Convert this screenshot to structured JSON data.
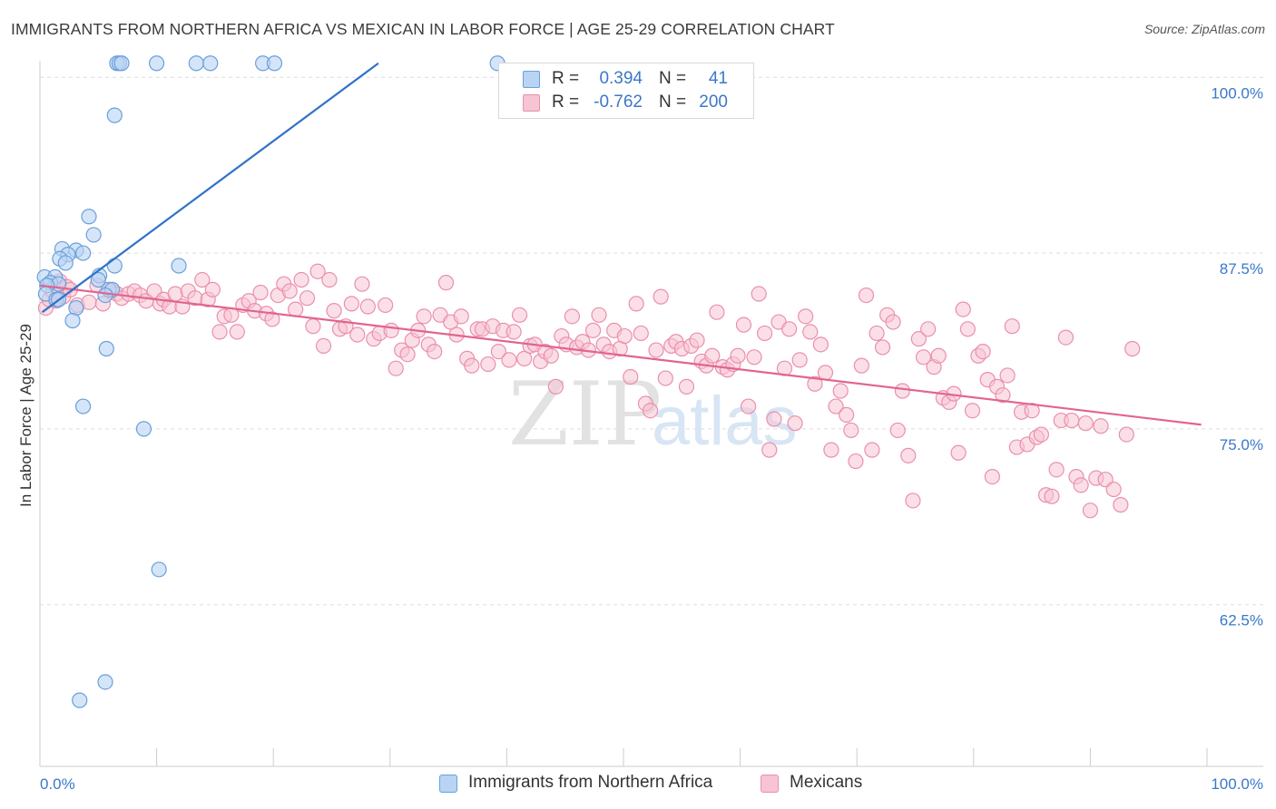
{
  "header": {
    "title": "IMMIGRANTS FROM NORTHERN AFRICA VS MEXICAN IN LABOR FORCE | AGE 25-29 CORRELATION CHART",
    "source": "Source: ZipAtlas.com"
  },
  "watermark": {
    "zip": "ZIP",
    "atlas": "atlas"
  },
  "colors": {
    "blue_fill": "#b9d4f3",
    "blue_stroke": "#6a9fdc",
    "blue_line": "#2f72c9",
    "pink_fill": "#f7c4d3",
    "pink_stroke": "#ea8fae",
    "pink_line": "#e2648f",
    "tick_label": "#3a78c9",
    "grid": "#dddddd"
  },
  "stats_legend": [
    {
      "r_label": "R =",
      "r_value": "0.394",
      "n_label": "N =",
      "n_value": "41"
    },
    {
      "r_label": "R =",
      "r_value": "-0.762",
      "n_label": "N =",
      "n_value": "200"
    }
  ],
  "bottom_legend": [
    {
      "label": "Immigrants from Northern Africa"
    },
    {
      "label": "Mexicans"
    }
  ],
  "chart_data": {
    "type": "scatter",
    "title": "IMMIGRANTS FROM NORTHERN AFRICA VS MEXICAN IN LABOR FORCE | AGE 25-29 CORRELATION CHART",
    "xlabel": "",
    "ylabel": "In Labor Force | Age 25-29",
    "xlim": [
      0,
      100
    ],
    "ylim": [
      51,
      101.5
    ],
    "x_tick_labels": [
      "0.0%",
      "100.0%"
    ],
    "y_ticks": [
      100,
      87.5,
      75,
      62.5
    ],
    "y_tick_labels": [
      "100.0%",
      "87.5%",
      "75.0%",
      "62.5%"
    ],
    "grid": true,
    "series": [
      {
        "name": "Immigrants from Northern Africa",
        "color": "#b9d4f3",
        "r": 0.394,
        "n": 41,
        "trend": {
          "x": [
            0.2,
            29.0
          ],
          "y": [
            83.3,
            101.0
          ]
        },
        "points": [
          [
            6.6,
            101
          ],
          [
            6.8,
            101
          ],
          [
            7.0,
            101
          ],
          [
            10.0,
            101
          ],
          [
            13.4,
            101
          ],
          [
            14.6,
            101
          ],
          [
            19.1,
            101
          ],
          [
            20.1,
            101
          ],
          [
            39.2,
            101
          ],
          [
            6.4,
            97.3
          ],
          [
            4.2,
            90.1
          ],
          [
            4.6,
            88.8
          ],
          [
            1.9,
            87.8
          ],
          [
            3.1,
            87.7
          ],
          [
            3.7,
            87.5
          ],
          [
            2.4,
            87.4
          ],
          [
            1.7,
            87.1
          ],
          [
            2.2,
            86.8
          ],
          [
            6.4,
            86.6
          ],
          [
            11.9,
            86.6
          ],
          [
            5.1,
            85.9
          ],
          [
            0.4,
            85.8
          ],
          [
            1.3,
            85.8
          ],
          [
            0.9,
            85.4
          ],
          [
            1.6,
            85.3
          ],
          [
            0.6,
            85.2
          ],
          [
            5.0,
            85.6
          ],
          [
            5.9,
            84.9
          ],
          [
            6.2,
            84.9
          ],
          [
            0.5,
            84.6
          ],
          [
            1.4,
            84.2
          ],
          [
            1.6,
            84.2
          ],
          [
            5.6,
            84.5
          ],
          [
            3.1,
            83.6
          ],
          [
            2.8,
            82.7
          ],
          [
            5.7,
            80.7
          ],
          [
            3.7,
            76.6
          ],
          [
            8.9,
            75.0
          ],
          [
            10.2,
            65.0
          ],
          [
            5.6,
            57.0
          ],
          [
            3.4,
            55.7
          ]
        ]
      },
      {
        "name": "Mexicans",
        "color": "#f7c4d3",
        "r": -0.762,
        "n": 200,
        "trend": {
          "x": [
            0.0,
            99.5
          ],
          "y": [
            85.2,
            75.3
          ]
        },
        "points": [
          [
            0.5,
            83.6
          ],
          [
            0.8,
            84.2
          ],
          [
            1.1,
            84.8
          ],
          [
            1.4,
            84.1
          ],
          [
            1.7,
            85.5
          ],
          [
            2.0,
            84.4
          ],
          [
            2.3,
            85.1
          ],
          [
            2.6,
            84.9
          ],
          [
            3.2,
            83.8
          ],
          [
            4.2,
            84.0
          ],
          [
            4.9,
            85.2
          ],
          [
            5.4,
            83.9
          ],
          [
            6.1,
            84.8
          ],
          [
            6.6,
            84.6
          ],
          [
            7.0,
            84.3
          ],
          [
            7.6,
            84.6
          ],
          [
            8.1,
            84.8
          ],
          [
            8.6,
            84.5
          ],
          [
            9.1,
            84.1
          ],
          [
            9.8,
            84.8
          ],
          [
            10.3,
            83.9
          ],
          [
            10.6,
            84.2
          ],
          [
            11.1,
            83.7
          ],
          [
            11.6,
            84.6
          ],
          [
            12.2,
            83.7
          ],
          [
            12.7,
            84.8
          ],
          [
            13.3,
            84.3
          ],
          [
            13.9,
            85.6
          ],
          [
            14.4,
            84.2
          ],
          [
            14.8,
            84.9
          ],
          [
            15.4,
            81.9
          ],
          [
            15.8,
            83.0
          ],
          [
            16.4,
            83.1
          ],
          [
            16.9,
            81.9
          ],
          [
            17.4,
            83.8
          ],
          [
            17.9,
            84.1
          ],
          [
            18.4,
            83.4
          ],
          [
            18.9,
            84.7
          ],
          [
            19.4,
            83.2
          ],
          [
            19.9,
            82.8
          ],
          [
            20.4,
            84.5
          ],
          [
            20.9,
            85.3
          ],
          [
            21.4,
            84.8
          ],
          [
            21.9,
            83.5
          ],
          [
            22.4,
            85.6
          ],
          [
            22.9,
            84.3
          ],
          [
            23.4,
            82.3
          ],
          [
            23.8,
            86.2
          ],
          [
            24.3,
            80.9
          ],
          [
            24.8,
            85.6
          ],
          [
            25.2,
            83.4
          ],
          [
            25.7,
            82.1
          ],
          [
            26.2,
            82.3
          ],
          [
            26.7,
            83.9
          ],
          [
            27.2,
            81.7
          ],
          [
            27.6,
            85.3
          ],
          [
            28.1,
            83.7
          ],
          [
            28.6,
            81.4
          ],
          [
            29.1,
            81.8
          ],
          [
            29.6,
            83.8
          ],
          [
            30.1,
            82.0
          ],
          [
            30.5,
            79.3
          ],
          [
            31.0,
            80.6
          ],
          [
            31.5,
            80.3
          ],
          [
            31.9,
            81.3
          ],
          [
            32.4,
            82.0
          ],
          [
            32.9,
            83.0
          ],
          [
            33.3,
            81.0
          ],
          [
            33.8,
            80.5
          ],
          [
            34.3,
            83.1
          ],
          [
            34.8,
            85.4
          ],
          [
            35.2,
            82.6
          ],
          [
            35.7,
            81.7
          ],
          [
            36.1,
            83.0
          ],
          [
            36.6,
            80.0
          ],
          [
            37.0,
            79.5
          ],
          [
            37.5,
            82.1
          ],
          [
            37.9,
            82.1
          ],
          [
            38.4,
            79.6
          ],
          [
            38.8,
            82.3
          ],
          [
            39.3,
            80.5
          ],
          [
            39.7,
            82.0
          ],
          [
            40.2,
            79.9
          ],
          [
            40.6,
            81.9
          ],
          [
            41.1,
            83.1
          ],
          [
            41.5,
            80.0
          ],
          [
            42.0,
            80.9
          ],
          [
            42.4,
            81.0
          ],
          [
            42.9,
            79.8
          ],
          [
            43.3,
            80.5
          ],
          [
            43.8,
            80.2
          ],
          [
            44.2,
            78.0
          ],
          [
            44.7,
            81.6
          ],
          [
            45.1,
            81.0
          ],
          [
            45.6,
            83.0
          ],
          [
            46.0,
            80.8
          ],
          [
            46.5,
            81.2
          ],
          [
            47.0,
            80.6
          ],
          [
            47.4,
            82.0
          ],
          [
            47.9,
            83.1
          ],
          [
            48.3,
            81.0
          ],
          [
            48.8,
            80.5
          ],
          [
            49.2,
            82.0
          ],
          [
            49.7,
            80.7
          ],
          [
            50.1,
            81.6
          ],
          [
            50.6,
            78.7
          ],
          [
            51.1,
            83.9
          ],
          [
            51.5,
            81.8
          ],
          [
            51.9,
            76.8
          ],
          [
            52.3,
            76.3
          ],
          [
            52.8,
            80.6
          ],
          [
            53.2,
            84.4
          ],
          [
            53.6,
            78.6
          ],
          [
            54.1,
            80.9
          ],
          [
            54.5,
            81.2
          ],
          [
            55.0,
            80.7
          ],
          [
            55.4,
            78.0
          ],
          [
            55.8,
            80.9
          ],
          [
            56.3,
            81.3
          ],
          [
            56.7,
            79.8
          ],
          [
            57.1,
            79.5
          ],
          [
            57.6,
            80.2
          ],
          [
            58.0,
            83.3
          ],
          [
            58.5,
            79.4
          ],
          [
            58.9,
            79.2
          ],
          [
            59.4,
            79.6
          ],
          [
            59.8,
            80.2
          ],
          [
            60.3,
            82.4
          ],
          [
            60.7,
            76.6
          ],
          [
            61.2,
            80.1
          ],
          [
            61.6,
            84.6
          ],
          [
            62.1,
            81.8
          ],
          [
            62.5,
            73.5
          ],
          [
            62.9,
            75.7
          ],
          [
            63.3,
            82.6
          ],
          [
            63.8,
            79.3
          ],
          [
            64.2,
            82.1
          ],
          [
            64.7,
            75.4
          ],
          [
            65.1,
            79.9
          ],
          [
            65.6,
            83.0
          ],
          [
            66.0,
            81.9
          ],
          [
            66.4,
            78.2
          ],
          [
            66.9,
            81.0
          ],
          [
            67.3,
            79.0
          ],
          [
            67.8,
            73.5
          ],
          [
            68.2,
            76.6
          ],
          [
            68.6,
            77.7
          ],
          [
            69.1,
            76.0
          ],
          [
            69.5,
            74.9
          ],
          [
            69.9,
            72.7
          ],
          [
            70.4,
            79.5
          ],
          [
            70.8,
            84.5
          ],
          [
            71.3,
            73.5
          ],
          [
            71.7,
            81.8
          ],
          [
            72.2,
            80.8
          ],
          [
            72.6,
            83.1
          ],
          [
            73.1,
            82.6
          ],
          [
            73.5,
            74.9
          ],
          [
            73.9,
            77.7
          ],
          [
            74.4,
            73.1
          ],
          [
            74.8,
            69.9
          ],
          [
            75.3,
            81.4
          ],
          [
            75.7,
            80.1
          ],
          [
            76.1,
            82.1
          ],
          [
            76.6,
            79.4
          ],
          [
            77.0,
            80.2
          ],
          [
            77.4,
            77.2
          ],
          [
            77.9,
            76.9
          ],
          [
            78.3,
            77.5
          ],
          [
            78.7,
            73.3
          ],
          [
            79.1,
            83.5
          ],
          [
            79.5,
            82.1
          ],
          [
            79.9,
            76.3
          ],
          [
            80.4,
            80.2
          ],
          [
            80.8,
            80.5
          ],
          [
            81.2,
            78.5
          ],
          [
            81.6,
            71.6
          ],
          [
            82.0,
            78.0
          ],
          [
            82.5,
            77.4
          ],
          [
            82.9,
            78.8
          ],
          [
            83.3,
            82.3
          ],
          [
            83.7,
            73.7
          ],
          [
            84.1,
            76.2
          ],
          [
            84.6,
            73.9
          ],
          [
            85.0,
            76.3
          ],
          [
            85.4,
            74.4
          ],
          [
            85.8,
            74.6
          ],
          [
            86.2,
            70.3
          ],
          [
            86.7,
            70.2
          ],
          [
            87.1,
            72.1
          ],
          [
            87.5,
            75.6
          ],
          [
            87.9,
            81.5
          ],
          [
            88.4,
            75.6
          ],
          [
            88.8,
            71.6
          ],
          [
            89.2,
            71.0
          ],
          [
            89.6,
            75.4
          ],
          [
            90.0,
            69.2
          ],
          [
            90.5,
            71.5
          ],
          [
            90.9,
            75.2
          ],
          [
            91.3,
            71.4
          ],
          [
            92.0,
            70.7
          ],
          [
            92.6,
            69.6
          ],
          [
            93.1,
            74.6
          ],
          [
            93.6,
            80.7
          ]
        ]
      }
    ]
  }
}
